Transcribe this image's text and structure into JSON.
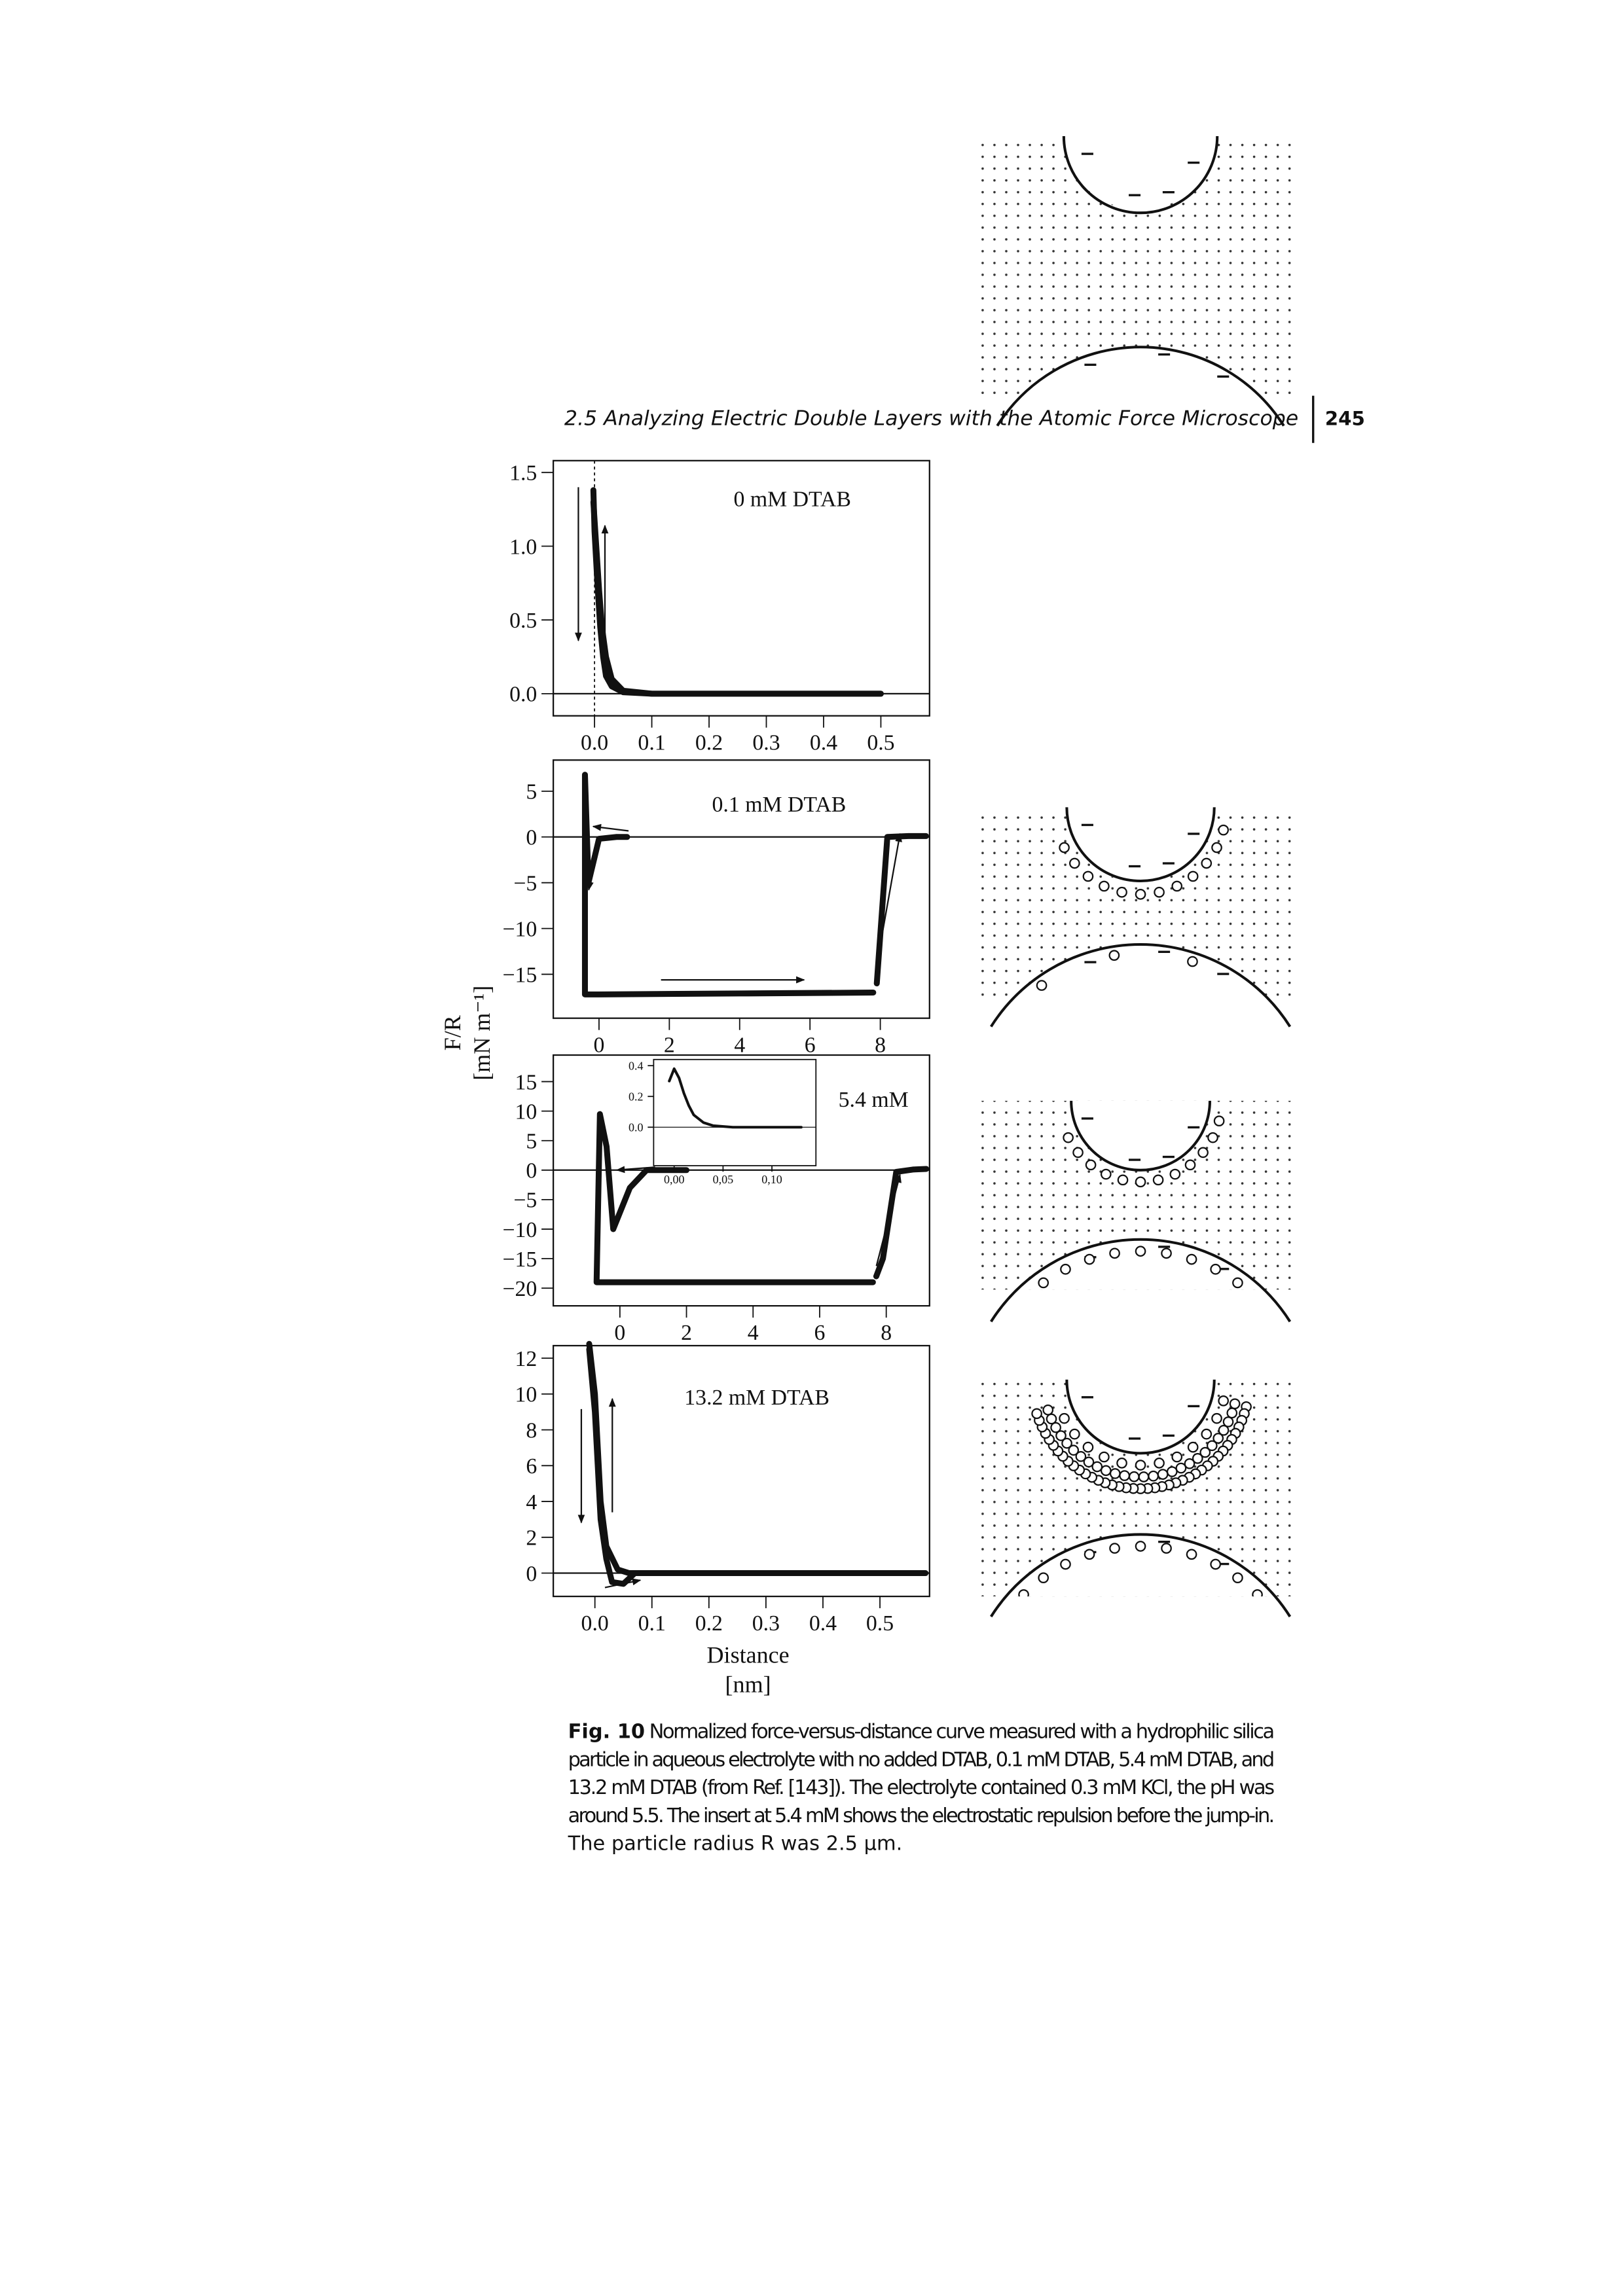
{
  "header": {
    "running_title": "2.5 Analyzing Electric Double Layers with the Atomic Force Microscope",
    "page_number": "245"
  },
  "figure": {
    "y_label": "F/R",
    "y_unit": "[mN m⁻¹]",
    "x_label": "Distance",
    "x_unit": "[nm]"
  },
  "chart_data": [
    {
      "type": "line",
      "title": "0 mM DTAB",
      "xlim": [
        -0.072,
        0.585
      ],
      "ylim": [
        -0.15,
        1.58
      ],
      "xticks": [
        {
          "value": 0,
          "label": "0.0"
        },
        {
          "value": 0.1,
          "label": "0.1"
        },
        {
          "value": 0.2,
          "label": "0.2"
        },
        {
          "value": 0.3,
          "label": "0.3"
        },
        {
          "value": 0.4,
          "label": "0.4"
        },
        {
          "value": 0.5,
          "label": "0.5"
        }
      ],
      "yticks": [
        {
          "value": 0,
          "label": "0.0"
        },
        {
          "value": 0.5,
          "label": "0.5"
        },
        {
          "value": 1,
          "label": "1.0"
        },
        {
          "value": 1.5,
          "label": "1.5"
        }
      ],
      "zero_line": true,
      "zero_vline": true,
      "series": [
        {
          "color": "#111111",
          "x": [
            0.5,
            0.4,
            0.3,
            0.2,
            0.1,
            0.05,
            0.03,
            0.02,
            0.015,
            0.01,
            0.005,
            0.0,
            -0.002
          ],
          "values": [
            0,
            0,
            0,
            0,
            0,
            0.01,
            0.05,
            0.12,
            0.25,
            0.45,
            0.75,
            1.1,
            1.38
          ]
        },
        {
          "color": "#111111",
          "x": [
            -0.002,
            0.003,
            0.008,
            0.013,
            0.02,
            0.03,
            0.05,
            0.1,
            0.3,
            0.5
          ],
          "values": [
            1.3,
            1.0,
            0.7,
            0.45,
            0.25,
            0.1,
            0.02,
            0,
            0,
            0
          ]
        }
      ]
    },
    {
      "type": "line",
      "title": "0.1 mM DTAB",
      "xlim": [
        -1.3,
        9.4
      ],
      "ylim": [
        -19.8,
        8.4
      ],
      "xticks": [
        0,
        2,
        4,
        6,
        8
      ],
      "yticks": [
        5,
        0,
        {
          "value": -5,
          "label": "−5"
        },
        {
          "value": -10,
          "label": "−10"
        },
        {
          "value": -15,
          "label": "−15"
        }
      ],
      "zero_line": true,
      "series": [
        {
          "color": "#111111",
          "x": [
            9.3,
            8.8,
            8.2,
            7.9
          ],
          "values": [
            0.1,
            0.1,
            0,
            -16
          ]
        },
        {
          "color": "#111111",
          "x": [
            7.8,
            4,
            0,
            -0.4,
            -0.4,
            -0.3,
            0,
            0.5,
            0.8
          ],
          "values": [
            -17,
            -17.1,
            -17.2,
            -17.2,
            6.8,
            -5,
            -0.2,
            0,
            0
          ]
        }
      ]
    },
    {
      "type": "line",
      "title": "5.4 mM",
      "xlim": [
        -2.0,
        9.3
      ],
      "ylim": [
        -23,
        19.5
      ],
      "xticks": [
        0,
        2,
        4,
        6,
        8
      ],
      "yticks": [
        15,
        10,
        5,
        0,
        {
          "value": -5,
          "label": "−5"
        },
        {
          "value": -10,
          "label": "−10"
        },
        {
          "value": -15,
          "label": "−15"
        },
        {
          "value": -20,
          "label": "−20"
        }
      ],
      "zero_line": true,
      "series": [
        {
          "color": "#111111",
          "x": [
            9.2,
            8.8,
            8.3,
            7.9,
            7.7
          ],
          "values": [
            0.2,
            0.1,
            -0.3,
            -15,
            -18
          ]
        },
        {
          "color": "#111111",
          "x": [
            7.6,
            4,
            0,
            -0.7,
            -0.6,
            -0.4,
            -0.2,
            0.3,
            0.8,
            1.2,
            2
          ],
          "values": [
            -19,
            -19,
            -19,
            -19,
            9.5,
            4,
            -10,
            -3,
            0,
            0,
            0
          ]
        }
      ],
      "inset": {
        "type": "line",
        "xlim": [
          -0.021,
          0.145
        ],
        "ylim": [
          -0.25,
          0.44
        ],
        "xticks": [
          {
            "value": 0,
            "label": "0,00"
          },
          {
            "value": 0.05,
            "label": "0,05"
          },
          {
            "value": 0.1,
            "label": "0,10"
          }
        ],
        "yticks": [
          {
            "value": 0,
            "label": "0.0"
          },
          {
            "value": 0.2,
            "label": "0.2"
          },
          {
            "value": 0.4,
            "label": "0.4"
          }
        ],
        "zero_line": true,
        "series": [
          {
            "color": "#111111",
            "x": [
              -0.005,
              0,
              0.005,
              0.01,
              0.015,
              0.02,
              0.03,
              0.04,
              0.06,
              0.08,
              0.1,
              0.13
            ],
            "values": [
              0.3,
              0.38,
              0.32,
              0.22,
              0.14,
              0.08,
              0.03,
              0.01,
              0,
              0,
              0,
              0
            ]
          }
        ]
      }
    },
    {
      "type": "line",
      "title": "13.2 mM DTAB",
      "xlim": [
        -0.073,
        0.587
      ],
      "ylim": [
        -1.3,
        12.7
      ],
      "xticks": [
        {
          "value": 0,
          "label": "0.0"
        },
        {
          "value": 0.1,
          "label": "0.1"
        },
        {
          "value": 0.2,
          "label": "0.2"
        },
        {
          "value": 0.3,
          "label": "0.3"
        },
        {
          "value": 0.4,
          "label": "0.4"
        },
        {
          "value": 0.5,
          "label": "0.5"
        }
      ],
      "yticks": [
        12,
        10,
        8,
        6,
        4,
        2,
        0
      ],
      "zero_line": true,
      "series": [
        {
          "color": "#111111",
          "x": [
            0.58,
            0.4,
            0.2,
            0.1,
            0.06,
            0.04,
            0.02,
            0.01,
            0.005,
            0,
            -0.01
          ],
          "values": [
            0,
            0,
            0,
            0,
            0,
            0.2,
            1.5,
            4,
            7,
            10,
            12.8
          ]
        },
        {
          "color": "#111111",
          "x": [
            -0.01,
            0,
            0.005,
            0.01,
            0.02,
            0.03,
            0.05,
            0.07
          ],
          "values": [
            12.5,
            9,
            6,
            3,
            0.8,
            -0.5,
            -0.6,
            0
          ]
        }
      ]
    }
  ],
  "caption": {
    "label": "Fig. 10",
    "lines": [
      "Normalized force-versus-distance curve measured with a hydrophilic silica",
      "particle in aqueous electrolyte with no added DTAB, 0.1 mM DTAB, 5.4 mM DTAB, and",
      "13.2 mM DTAB (from Ref. [143]). The electrolyte contained 0.3 mM KCl, the pH was",
      "around 5.5. The insert at 5.4 mM shows the electrostatic repulsion before the jump-in.",
      "The particle radius R was 2.5 μm."
    ]
  }
}
